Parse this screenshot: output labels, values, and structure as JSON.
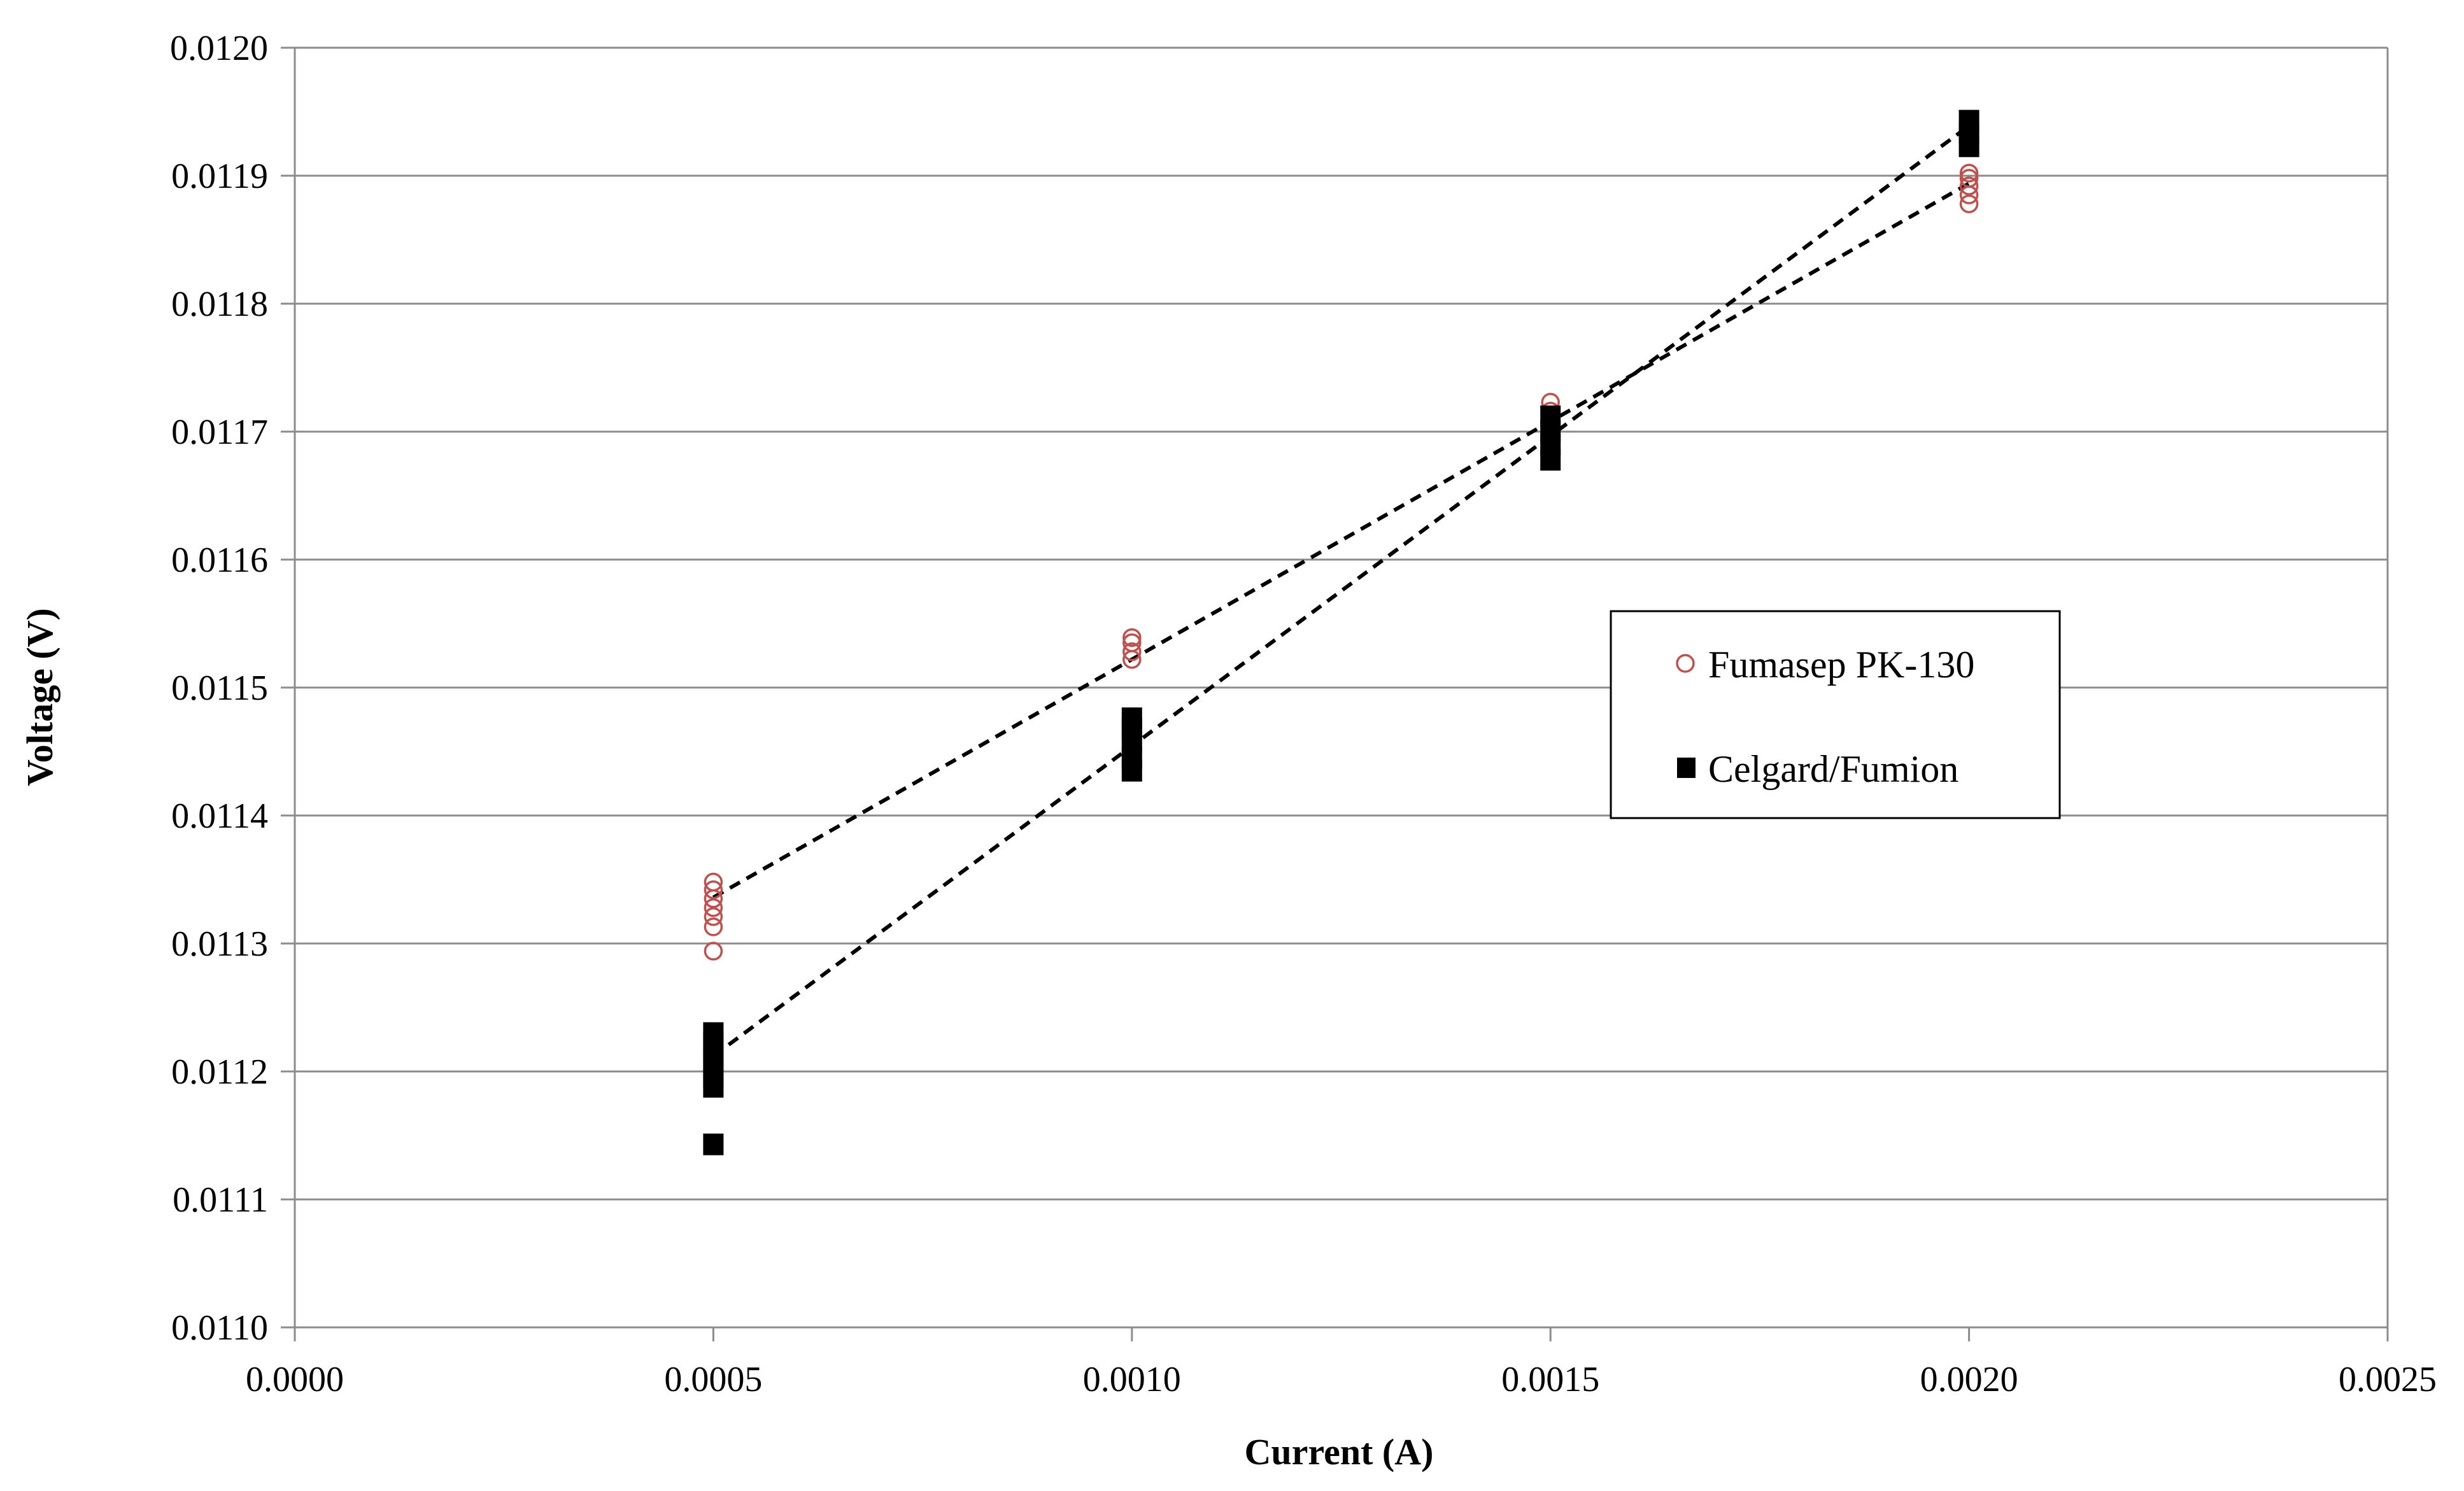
{
  "chart_data": {
    "type": "scatter",
    "title": "",
    "xlabel": "Current (A)",
    "ylabel": "Voltage (V)",
    "xlim": [
      0,
      0.0025
    ],
    "ylim": [
      0.011,
      0.012
    ],
    "x_ticks": [
      "0.0000",
      "0.0005",
      "0.0010",
      "0.0015",
      "0.0020",
      "0.0025"
    ],
    "y_ticks": [
      "0.0110",
      "0.0111",
      "0.0112",
      "0.0113",
      "0.0114",
      "0.0115",
      "0.0116",
      "0.0117",
      "0.0118",
      "0.0119",
      "0.0120"
    ],
    "grid": "horizontal",
    "legend_position": "center-right",
    "series": [
      {
        "name": "Fumasep PK-130",
        "marker": "open-circle",
        "color": "#c0504d",
        "points": [
          [
            0.0005,
            0.011294
          ],
          [
            0.0005,
            0.011313
          ],
          [
            0.0005,
            0.011321
          ],
          [
            0.0005,
            0.011328
          ],
          [
            0.0005,
            0.011335
          ],
          [
            0.0005,
            0.011342
          ],
          [
            0.0005,
            0.011348
          ],
          [
            0.001,
            0.011522
          ],
          [
            0.001,
            0.011528
          ],
          [
            0.001,
            0.011535
          ],
          [
            0.001,
            0.011539
          ],
          [
            0.0015,
            0.011702
          ],
          [
            0.0015,
            0.011708
          ],
          [
            0.0015,
            0.011716
          ],
          [
            0.0015,
            0.011723
          ],
          [
            0.002,
            0.011878
          ],
          [
            0.002,
            0.011885
          ],
          [
            0.002,
            0.011892
          ],
          [
            0.002,
            0.011898
          ],
          [
            0.002,
            0.011902
          ]
        ],
        "trendline": {
          "style": "dashed",
          "color": "#000000",
          "x": [
            0.0005,
            0.002
          ],
          "y": [
            0.011336,
            0.011894
          ]
        }
      },
      {
        "name": "Celgard/Fumion",
        "marker": "filled-square",
        "color": "#000000",
        "points": [
          [
            0.0005,
            0.011143
          ],
          [
            0.0005,
            0.011188
          ],
          [
            0.0005,
            0.011196
          ],
          [
            0.0005,
            0.011205
          ],
          [
            0.0005,
            0.011213
          ],
          [
            0.0005,
            0.011222
          ],
          [
            0.0005,
            0.01123
          ],
          [
            0.001,
            0.011435
          ],
          [
            0.001,
            0.011445
          ],
          [
            0.001,
            0.011458
          ],
          [
            0.001,
            0.011468
          ],
          [
            0.001,
            0.011476
          ],
          [
            0.0015,
            0.011678
          ],
          [
            0.0015,
            0.01169
          ],
          [
            0.0015,
            0.0117
          ],
          [
            0.0015,
            0.011712
          ],
          [
            0.002,
            0.011923
          ],
          [
            0.002,
            0.011933
          ],
          [
            0.002,
            0.011943
          ]
        ],
        "trendline": {
          "style": "dashed",
          "color": "#000000",
          "x": [
            0.0005,
            0.002
          ],
          "y": [
            0.011212,
            0.011939
          ]
        }
      }
    ]
  }
}
